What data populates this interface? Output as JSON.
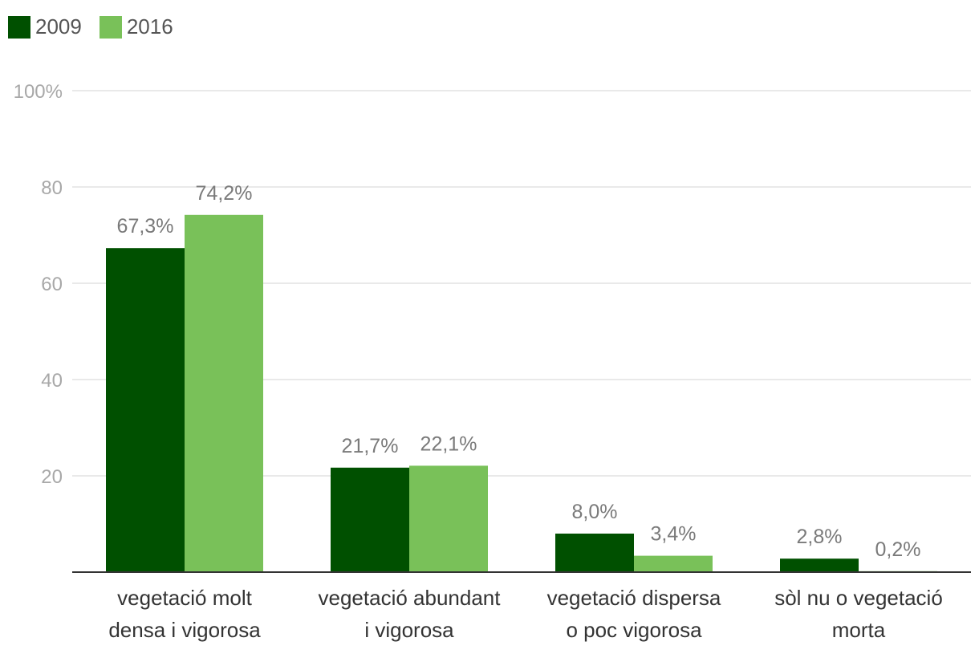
{
  "colors": {
    "series_2009": "#005000",
    "series_2016": "#79c159",
    "grid": "#e2e2e2",
    "axis": "#333333"
  },
  "chart_data": {
    "type": "bar",
    "categories": [
      [
        "vegetació molt",
        "densa i vigorosa"
      ],
      [
        "vegetació abundant",
        "i vigorosa"
      ],
      [
        "vegetació dispersa",
        "o poc vigorosa"
      ],
      [
        "sòl nu o vegetació",
        "morta"
      ]
    ],
    "series": [
      {
        "name": "2009",
        "values": [
          67.3,
          21.7,
          8.0,
          2.8
        ],
        "labels": [
          "67,3%",
          "21,7%",
          "8,0%",
          "2,8%"
        ]
      },
      {
        "name": "2016",
        "values": [
          74.2,
          22.1,
          3.4,
          0.2
        ],
        "labels": [
          "74,2%",
          "22,1%",
          "3,4%",
          "0,2%"
        ]
      }
    ],
    "yticks": [
      {
        "value": 20,
        "label": "20"
      },
      {
        "value": 40,
        "label": "40"
      },
      {
        "value": 60,
        "label": "60"
      },
      {
        "value": 80,
        "label": "80"
      },
      {
        "value": 100,
        "label": "100%"
      }
    ],
    "ylim": [
      0,
      100
    ],
    "grid": true,
    "legend_position": "top-left"
  }
}
